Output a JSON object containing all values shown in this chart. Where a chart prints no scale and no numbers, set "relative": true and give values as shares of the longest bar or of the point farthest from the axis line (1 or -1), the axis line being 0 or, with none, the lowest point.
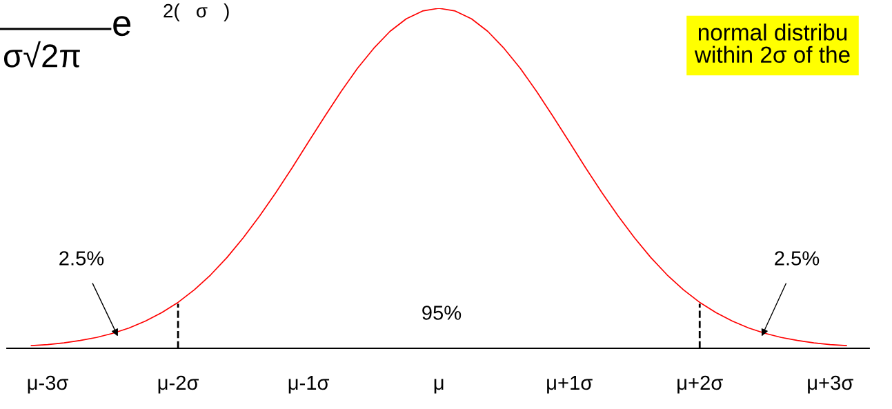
{
  "chart_data": {
    "type": "line",
    "relative": true,
    "categories": [
      null,
      "μ-3σ",
      null,
      null,
      null,
      null,
      null,
      null,
      null,
      "μ-2σ",
      null,
      null,
      null,
      null,
      null,
      null,
      null,
      "μ-1σ",
      null,
      null,
      null,
      null,
      null,
      null,
      null,
      "μ",
      null,
      null,
      null,
      null,
      null,
      null,
      null,
      "μ+1σ",
      null,
      null,
      null,
      null,
      null,
      null,
      null,
      "μ+2σ",
      null,
      null,
      null,
      null,
      null,
      null,
      null,
      "μ+3σ",
      null
    ],
    "series": [
      {
        "color": "#ff0000",
        "values": [
          0.008,
          0.011,
          0.016,
          0.023,
          0.032,
          0.044,
          0.06,
          0.08,
          0.105,
          0.135,
          0.172,
          0.216,
          0.267,
          0.325,
          0.389,
          0.458,
          0.531,
          0.607,
          0.682,
          0.755,
          0.823,
          0.882,
          0.932,
          0.969,
          0.992,
          1,
          0.992,
          0.969,
          0.932,
          0.882,
          0.823,
          0.755,
          0.682,
          0.607,
          0.531,
          0.458,
          0.389,
          0.325,
          0.267,
          0.216,
          0.172,
          0.135,
          0.105,
          0.08,
          0.06,
          0.044,
          0.032,
          0.023,
          0.016,
          0.011,
          0.008
        ]
      }
    ],
    "ref_lines": [
      {
        "axis": "x",
        "value": "μ-2σ",
        "color": "#000000",
        "line_style": "dashed"
      },
      {
        "axis": "x",
        "value": "μ+2σ",
        "color": "#000000",
        "line_style": "dashed"
      }
    ],
    "annotations": [
      "σ√2π",
      "e",
      "2(   σ   )",
      "normal distribu\nwithin 2σ of the",
      "2.5%",
      "2.5%",
      "95%"
    ],
    "grid": false,
    "legend": false,
    "marker": "none",
    "line_style": "solid"
  }
}
